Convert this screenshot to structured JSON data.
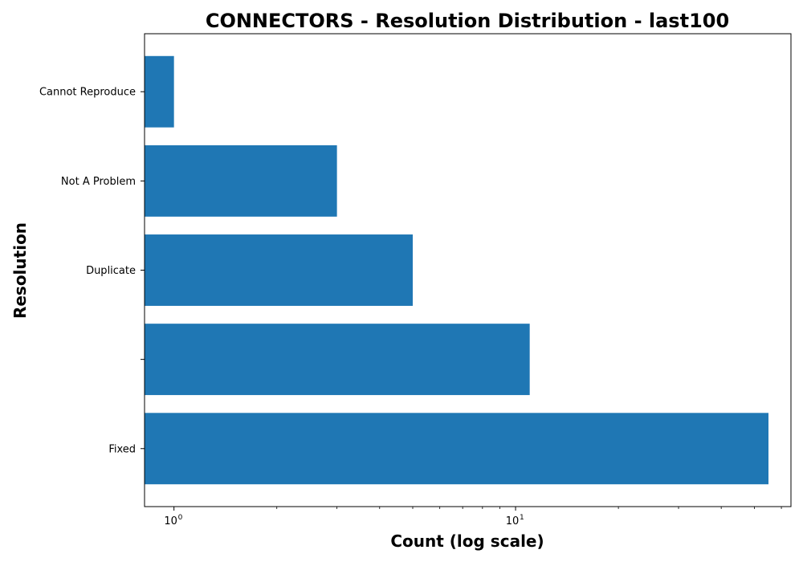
{
  "chart_data": {
    "type": "bar",
    "orientation": "horizontal",
    "title": "CONNECTORS - Resolution Distribution - last100",
    "xlabel": "Count (log scale)",
    "ylabel": "Resolution",
    "xscale": "log",
    "xlim": [
      0.82,
      64
    ],
    "categories": [
      "Fixed",
      "",
      "Duplicate",
      "Not A Problem",
      "Cannot Reproduce"
    ],
    "values": [
      55,
      11,
      5,
      3,
      1
    ],
    "bar_color": "#1f77b4",
    "x_major_ticks": [
      {
        "value": 1,
        "base": "10",
        "exp": "0"
      },
      {
        "value": 10,
        "base": "10",
        "exp": "1"
      }
    ],
    "grid": false,
    "legend": "none"
  }
}
